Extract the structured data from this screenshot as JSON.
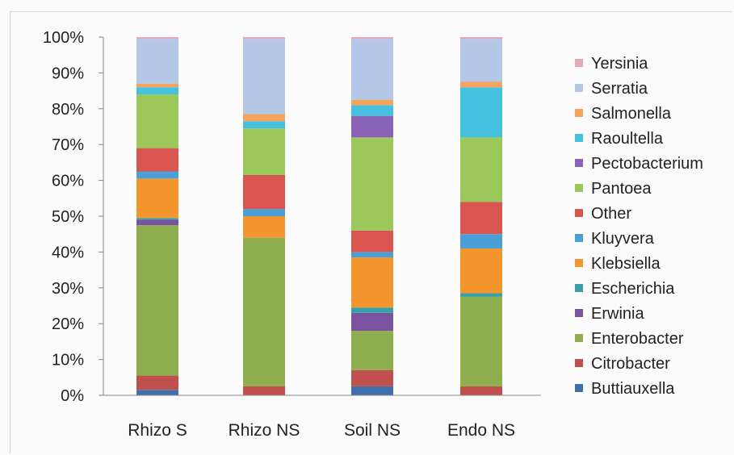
{
  "chart_data": {
    "type": "bar",
    "stacked": true,
    "normalized": true,
    "title": "",
    "xlabel": "",
    "ylabel": "",
    "ylim": [
      0,
      100
    ],
    "yticks": [
      "0%",
      "10%",
      "20%",
      "30%",
      "40%",
      "50%",
      "60%",
      "70%",
      "80%",
      "90%",
      "100%"
    ],
    "categories": [
      "Rhizo S",
      "Rhizo NS",
      "Soil NS",
      "Endo NS"
    ],
    "legend_position": "right",
    "grid": false,
    "series": [
      {
        "name": "Buttiauxella",
        "color": "#3f6fad",
        "values": [
          1.5,
          0.0,
          2.5,
          0.0
        ]
      },
      {
        "name": "Citrobacter",
        "color": "#c0504d",
        "values": [
          4.0,
          2.5,
          4.5,
          2.5
        ]
      },
      {
        "name": "Enterobacter",
        "color": "#8fae4f",
        "values": [
          42.0,
          41.5,
          11.0,
          25.0
        ]
      },
      {
        "name": "Erwinia",
        "color": "#7a52a0",
        "values": [
          1.5,
          0.0,
          5.0,
          0.0
        ]
      },
      {
        "name": "Escherichia",
        "color": "#3aa0a8",
        "values": [
          0.5,
          0.0,
          1.5,
          1.0
        ]
      },
      {
        "name": "Klebsiella",
        "color": "#f4952e",
        "values": [
          11.0,
          6.0,
          14.0,
          12.5
        ]
      },
      {
        "name": "Kluyvera",
        "color": "#4a9fd6",
        "values": [
          2.0,
          2.0,
          1.5,
          4.0
        ]
      },
      {
        "name": "Other",
        "color": "#d9554f",
        "values": [
          6.5,
          9.5,
          6.0,
          9.0
        ]
      },
      {
        "name": "Pantoea",
        "color": "#9bc75b",
        "values": [
          15.0,
          13.0,
          26.0,
          18.0
        ]
      },
      {
        "name": "Pectobacterium",
        "color": "#8a63b6",
        "values": [
          0.0,
          0.0,
          6.0,
          0.0
        ]
      },
      {
        "name": "Raoultella",
        "color": "#45c0de",
        "values": [
          2.0,
          2.0,
          3.0,
          14.0
        ]
      },
      {
        "name": "Salmonella",
        "color": "#f7a35c",
        "values": [
          1.0,
          2.0,
          1.5,
          1.5
        ]
      },
      {
        "name": "Serratia",
        "color": "#b4c7e7",
        "values": [
          12.5,
          21.0,
          17.0,
          12.0
        ]
      },
      {
        "name": "Yersinia",
        "color": "#e4a9b4",
        "values": [
          0.5,
          0.5,
          0.5,
          0.5
        ]
      }
    ]
  }
}
